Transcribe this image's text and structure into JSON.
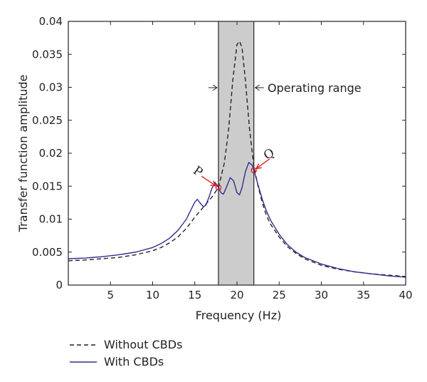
{
  "chart_data": {
    "type": "line",
    "title": "",
    "xlabel": "Frequency (Hz)",
    "ylabel": "Transfer function amplitude",
    "xlim": [
      0,
      40
    ],
    "ylim": [
      0,
      0.04
    ],
    "xticks": [
      5,
      10,
      15,
      20,
      25,
      30,
      35,
      40
    ],
    "xtick_labels": [
      "5",
      "10",
      "15",
      "20",
      "25",
      "30",
      "35",
      "40"
    ],
    "yticks": [
      0,
      0.005,
      0.01,
      0.015,
      0.02,
      0.025,
      0.03,
      0.035,
      0.04
    ],
    "ytick_labels": [
      "0",
      "0.005",
      "0.01",
      "0.015",
      "0.02",
      "0.025",
      "0.03",
      "0.035",
      "0.04"
    ],
    "grid": false,
    "legend_position": "below-left",
    "operating_range": {
      "x": [
        17.8,
        22.0
      ],
      "label": "Operating range",
      "color": "#cccccc"
    },
    "points": [
      {
        "label": "P",
        "x": 17.8,
        "y": 0.0148,
        "color": "#e02020"
      },
      {
        "label": "Q",
        "x": 22.0,
        "y": 0.0174,
        "color": "#e02020"
      }
    ],
    "series": [
      {
        "name": "Without CBDs",
        "style": "dashed",
        "color": "#222222",
        "x": [
          0,
          2,
          4,
          6,
          8,
          10,
          11,
          12,
          13,
          14,
          15,
          16,
          17,
          17.8,
          18.5,
          19,
          19.5,
          20,
          20.3,
          20.6,
          21,
          21.5,
          22,
          22.5,
          23,
          23.5,
          24,
          25,
          26,
          27,
          28,
          30,
          32,
          34,
          36,
          38,
          40
        ],
        "y": [
          0.0037,
          0.0038,
          0.004,
          0.0042,
          0.0046,
          0.0052,
          0.0057,
          0.0064,
          0.0073,
          0.0086,
          0.0103,
          0.0118,
          0.0133,
          0.0148,
          0.0185,
          0.0235,
          0.031,
          0.0365,
          0.037,
          0.036,
          0.031,
          0.0235,
          0.018,
          0.015,
          0.0125,
          0.0105,
          0.0092,
          0.0073,
          0.0058,
          0.0048,
          0.004,
          0.003,
          0.0024,
          0.002,
          0.0017,
          0.0015,
          0.0013
        ]
      },
      {
        "name": "With CBDs",
        "style": "solid",
        "color": "#2e2e8c",
        "x": [
          0,
          2,
          4,
          6,
          8,
          10,
          11,
          12,
          13,
          14,
          14.5,
          15,
          15.3,
          15.6,
          16,
          16.3,
          16.7,
          17,
          17.4,
          17.8,
          18.1,
          18.4,
          18.8,
          19.2,
          19.6,
          20,
          20.3,
          20.6,
          21,
          21.4,
          21.8,
          22,
          22.5,
          23,
          23.5,
          24,
          25,
          26,
          27,
          28,
          30,
          32,
          34,
          36,
          38,
          40
        ],
        "y": [
          0.004,
          0.0041,
          0.0043,
          0.0046,
          0.005,
          0.0057,
          0.0063,
          0.0071,
          0.0083,
          0.01,
          0.0113,
          0.0126,
          0.013,
          0.0125,
          0.0119,
          0.0121,
          0.0134,
          0.0146,
          0.0156,
          0.0148,
          0.014,
          0.0138,
          0.015,
          0.0163,
          0.0158,
          0.014,
          0.0137,
          0.0148,
          0.0172,
          0.0186,
          0.0182,
          0.0174,
          0.0152,
          0.013,
          0.0112,
          0.0098,
          0.0077,
          0.0061,
          0.005,
          0.0042,
          0.0032,
          0.0025,
          0.002,
          0.0017,
          0.0014,
          0.0012
        ]
      }
    ]
  }
}
